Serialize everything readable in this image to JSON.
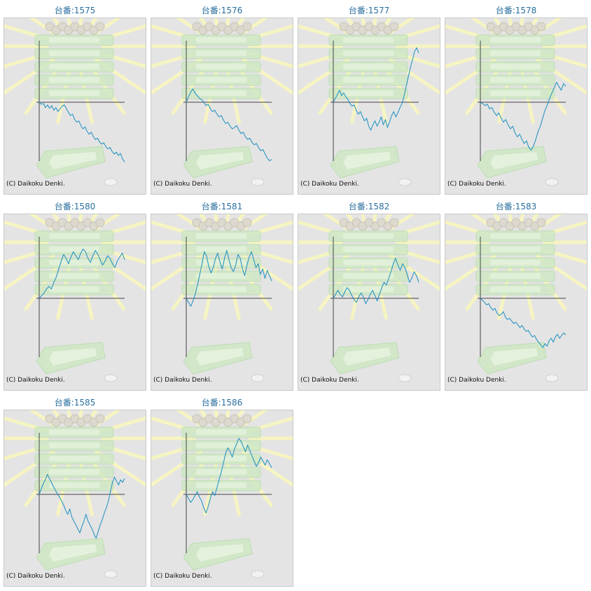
{
  "copyright_text": "(C) Daikoku Denki.",
  "colors": {
    "title": "#2a6f9e",
    "line": "#1a8fbf",
    "axis": "#444444",
    "panel": "#e4e4e4",
    "art": "#cfe8c5",
    "rays": "#f6f4c2"
  },
  "machines": [
    {
      "label": "台番:1575",
      "series": [
        0,
        -3,
        -2,
        -8,
        -4,
        -9,
        -5,
        -12,
        -8,
        -14,
        -10,
        -6,
        -4,
        -9,
        -15,
        -20,
        -18,
        -26,
        -30,
        -28,
        -35,
        -40,
        -37,
        -44,
        -48,
        -45,
        -52,
        -56,
        -54,
        -60,
        -63,
        -61,
        -67,
        -70,
        -68,
        -74,
        -78,
        -75,
        -80,
        -77,
        -85,
        -90
      ]
    },
    {
      "label": "台番:1576",
      "series": [
        0,
        8,
        15,
        20,
        14,
        10,
        6,
        4,
        0,
        -5,
        -3,
        -10,
        -14,
        -12,
        -18,
        -22,
        -20,
        -27,
        -32,
        -30,
        -36,
        -40,
        -38,
        -35,
        -42,
        -47,
        -45,
        -52,
        -56,
        -54,
        -60,
        -64,
        -62,
        -68,
        -73,
        -71,
        -78,
        -84,
        -88,
        -86
      ]
    },
    {
      "label": "台番:1577",
      "series": [
        0,
        6,
        12,
        18,
        10,
        14,
        8,
        4,
        -2,
        -6,
        -4,
        -12,
        -18,
        -14,
        -22,
        -28,
        -24,
        -36,
        -42,
        -34,
        -28,
        -36,
        -30,
        -22,
        -34,
        -26,
        -38,
        -30,
        -20,
        -14,
        -22,
        -16,
        -8,
        -2,
        10,
        24,
        38,
        52,
        64,
        76,
        82,
        74
      ]
    },
    {
      "label": "台番:1578",
      "series": [
        0,
        -2,
        -5,
        -3,
        -10,
        -8,
        -15,
        -20,
        -16,
        -24,
        -30,
        -26,
        -34,
        -40,
        -36,
        -46,
        -52,
        -48,
        -56,
        -62,
        -58,
        -68,
        -72,
        -66,
        -56,
        -44,
        -36,
        -24,
        -12,
        -4,
        6,
        14,
        22,
        30,
        24,
        18,
        28,
        24
      ]
    },
    {
      "label": "台番:1580",
      "series": [
        0,
        4,
        8,
        14,
        18,
        14,
        24,
        32,
        44,
        56,
        66,
        60,
        52,
        62,
        70,
        64,
        58,
        68,
        74,
        70,
        60,
        54,
        64,
        72,
        66,
        58,
        50,
        56,
        64,
        60,
        52,
        46,
        56,
        62,
        68,
        58
      ]
    },
    {
      "label": "台番:1581",
      "series": [
        0,
        -6,
        -12,
        -4,
        6,
        20,
        36,
        52,
        70,
        64,
        48,
        38,
        46,
        60,
        68,
        54,
        44,
        60,
        72,
        58,
        46,
        40,
        50,
        66,
        60,
        44,
        34,
        50,
        62,
        70,
        58,
        46,
        52,
        36,
        44,
        30,
        42,
        34,
        26
      ]
    },
    {
      "label": "台番:1582",
      "series": [
        0,
        6,
        12,
        6,
        2,
        10,
        16,
        12,
        4,
        -2,
        -6,
        2,
        8,
        2,
        -8,
        -2,
        6,
        12,
        4,
        -4,
        6,
        16,
        24,
        20,
        30,
        40,
        52,
        60,
        50,
        42,
        52,
        46,
        36,
        24,
        30,
        40,
        34,
        24
      ]
    },
    {
      "label": "台番:1583",
      "series": [
        0,
        -3,
        -6,
        -10,
        -8,
        -14,
        -18,
        -15,
        -22,
        -26,
        -24,
        -20,
        -28,
        -32,
        -30,
        -34,
        -38,
        -36,
        -40,
        -44,
        -41,
        -46,
        -50,
        -48,
        -54,
        -58,
        -56,
        -62,
        -66,
        -70,
        -74,
        -68,
        -72,
        -64,
        -60,
        -66,
        -58,
        -54,
        -60,
        -56,
        -52,
        -55
      ]
    },
    {
      "label": "台番:1585",
      "series": [
        0,
        8,
        16,
        22,
        30,
        24,
        18,
        12,
        6,
        0,
        -4,
        -10,
        -16,
        -24,
        -30,
        -22,
        -34,
        -40,
        -46,
        -52,
        -58,
        -48,
        -40,
        -30,
        -40,
        -46,
        -52,
        -60,
        -66,
        -56,
        -46,
        -38,
        -28,
        -20,
        -10,
        4,
        18,
        26,
        20,
        14,
        22,
        18,
        24
      ]
    },
    {
      "label": "台番:1586",
      "series": [
        0,
        -6,
        -12,
        -8,
        -2,
        4,
        -4,
        -10,
        -20,
        -28,
        -18,
        -6,
        4,
        -2,
        10,
        22,
        34,
        48,
        62,
        70,
        64,
        56,
        68,
        76,
        84,
        80,
        72,
        64,
        74,
        66,
        58,
        50,
        42,
        48,
        56,
        50,
        44,
        52,
        46,
        40
      ]
    }
  ]
}
